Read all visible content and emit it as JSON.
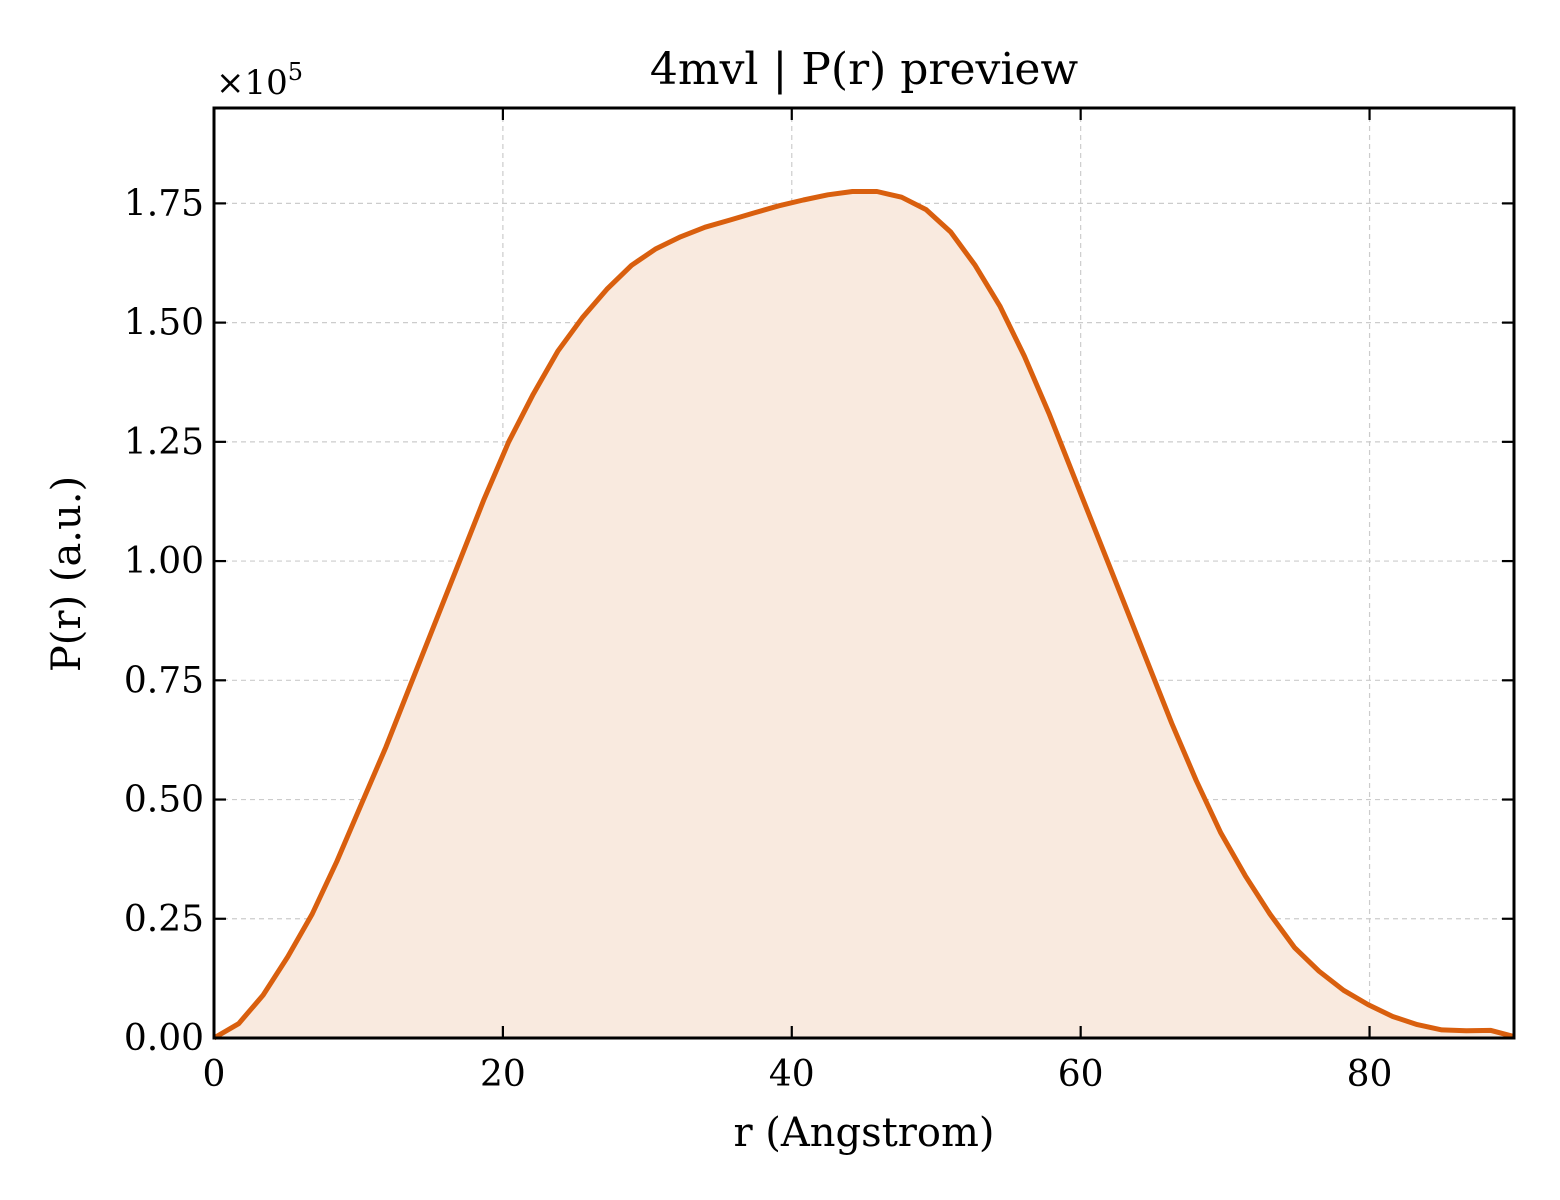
{
  "colors": {
    "line": "#d95f0e",
    "fill": "#f9eadf",
    "axis": "#000000",
    "grid": "#cccccc"
  },
  "chart_data": {
    "type": "area",
    "title": "4mvl | P(r) preview",
    "xlabel": "r (Angstrom)",
    "ylabel": "P(r) (a.u.)",
    "y_offset_label": "×10",
    "y_offset_exponent": "5",
    "xlim": [
      0,
      90
    ],
    "ylim": [
      0,
      1.95
    ],
    "y_scale_factor": 100000,
    "grid": true,
    "x_ticks": [
      0,
      20,
      40,
      60,
      80
    ],
    "x_tick_labels": [
      "0",
      "20",
      "40",
      "60",
      "80"
    ],
    "y_ticks": [
      0,
      0.25,
      0.5,
      0.75,
      1.0,
      1.25,
      1.5,
      1.75
    ],
    "y_tick_labels": [
      "0.00",
      "0.25",
      "0.50",
      "0.75",
      "1.00",
      "1.25",
      "1.50",
      "1.75"
    ],
    "series": [
      {
        "x": [
          0,
          1.7,
          3.4,
          5.1,
          6.8,
          8.5,
          10.2,
          11.9,
          13.6,
          15.3,
          17.0,
          18.7,
          20.4,
          22.1,
          23.8,
          25.5,
          27.2,
          28.9,
          30.6,
          32.3,
          34.0,
          35.7,
          37.4,
          39.1,
          40.8,
          42.5,
          44.2,
          45.9,
          47.6,
          49.3,
          51.0,
          52.7,
          54.4,
          56.1,
          57.8,
          59.5,
          61.2,
          62.9,
          64.6,
          66.3,
          68.0,
          69.7,
          71.4,
          73.1,
          74.8,
          76.5,
          78.2,
          79.9,
          81.6,
          83.3,
          85.0,
          86.7,
          88.4,
          90.0
        ],
        "y": [
          0.0,
          0.03,
          0.09,
          0.17,
          0.26,
          0.37,
          0.49,
          0.61,
          0.74,
          0.87,
          1.0,
          1.13,
          1.25,
          1.35,
          1.44,
          1.51,
          1.57,
          1.62,
          1.655,
          1.68,
          1.7,
          1.715,
          1.73,
          1.745,
          1.757,
          1.768,
          1.775,
          1.775,
          1.763,
          1.737,
          1.69,
          1.62,
          1.535,
          1.43,
          1.31,
          1.18,
          1.05,
          0.92,
          0.79,
          0.66,
          0.54,
          0.43,
          0.34,
          0.26,
          0.19,
          0.14,
          0.1,
          0.07,
          0.045,
          0.028,
          0.017,
          0.015,
          0.016,
          0.003
        ]
      }
    ]
  }
}
